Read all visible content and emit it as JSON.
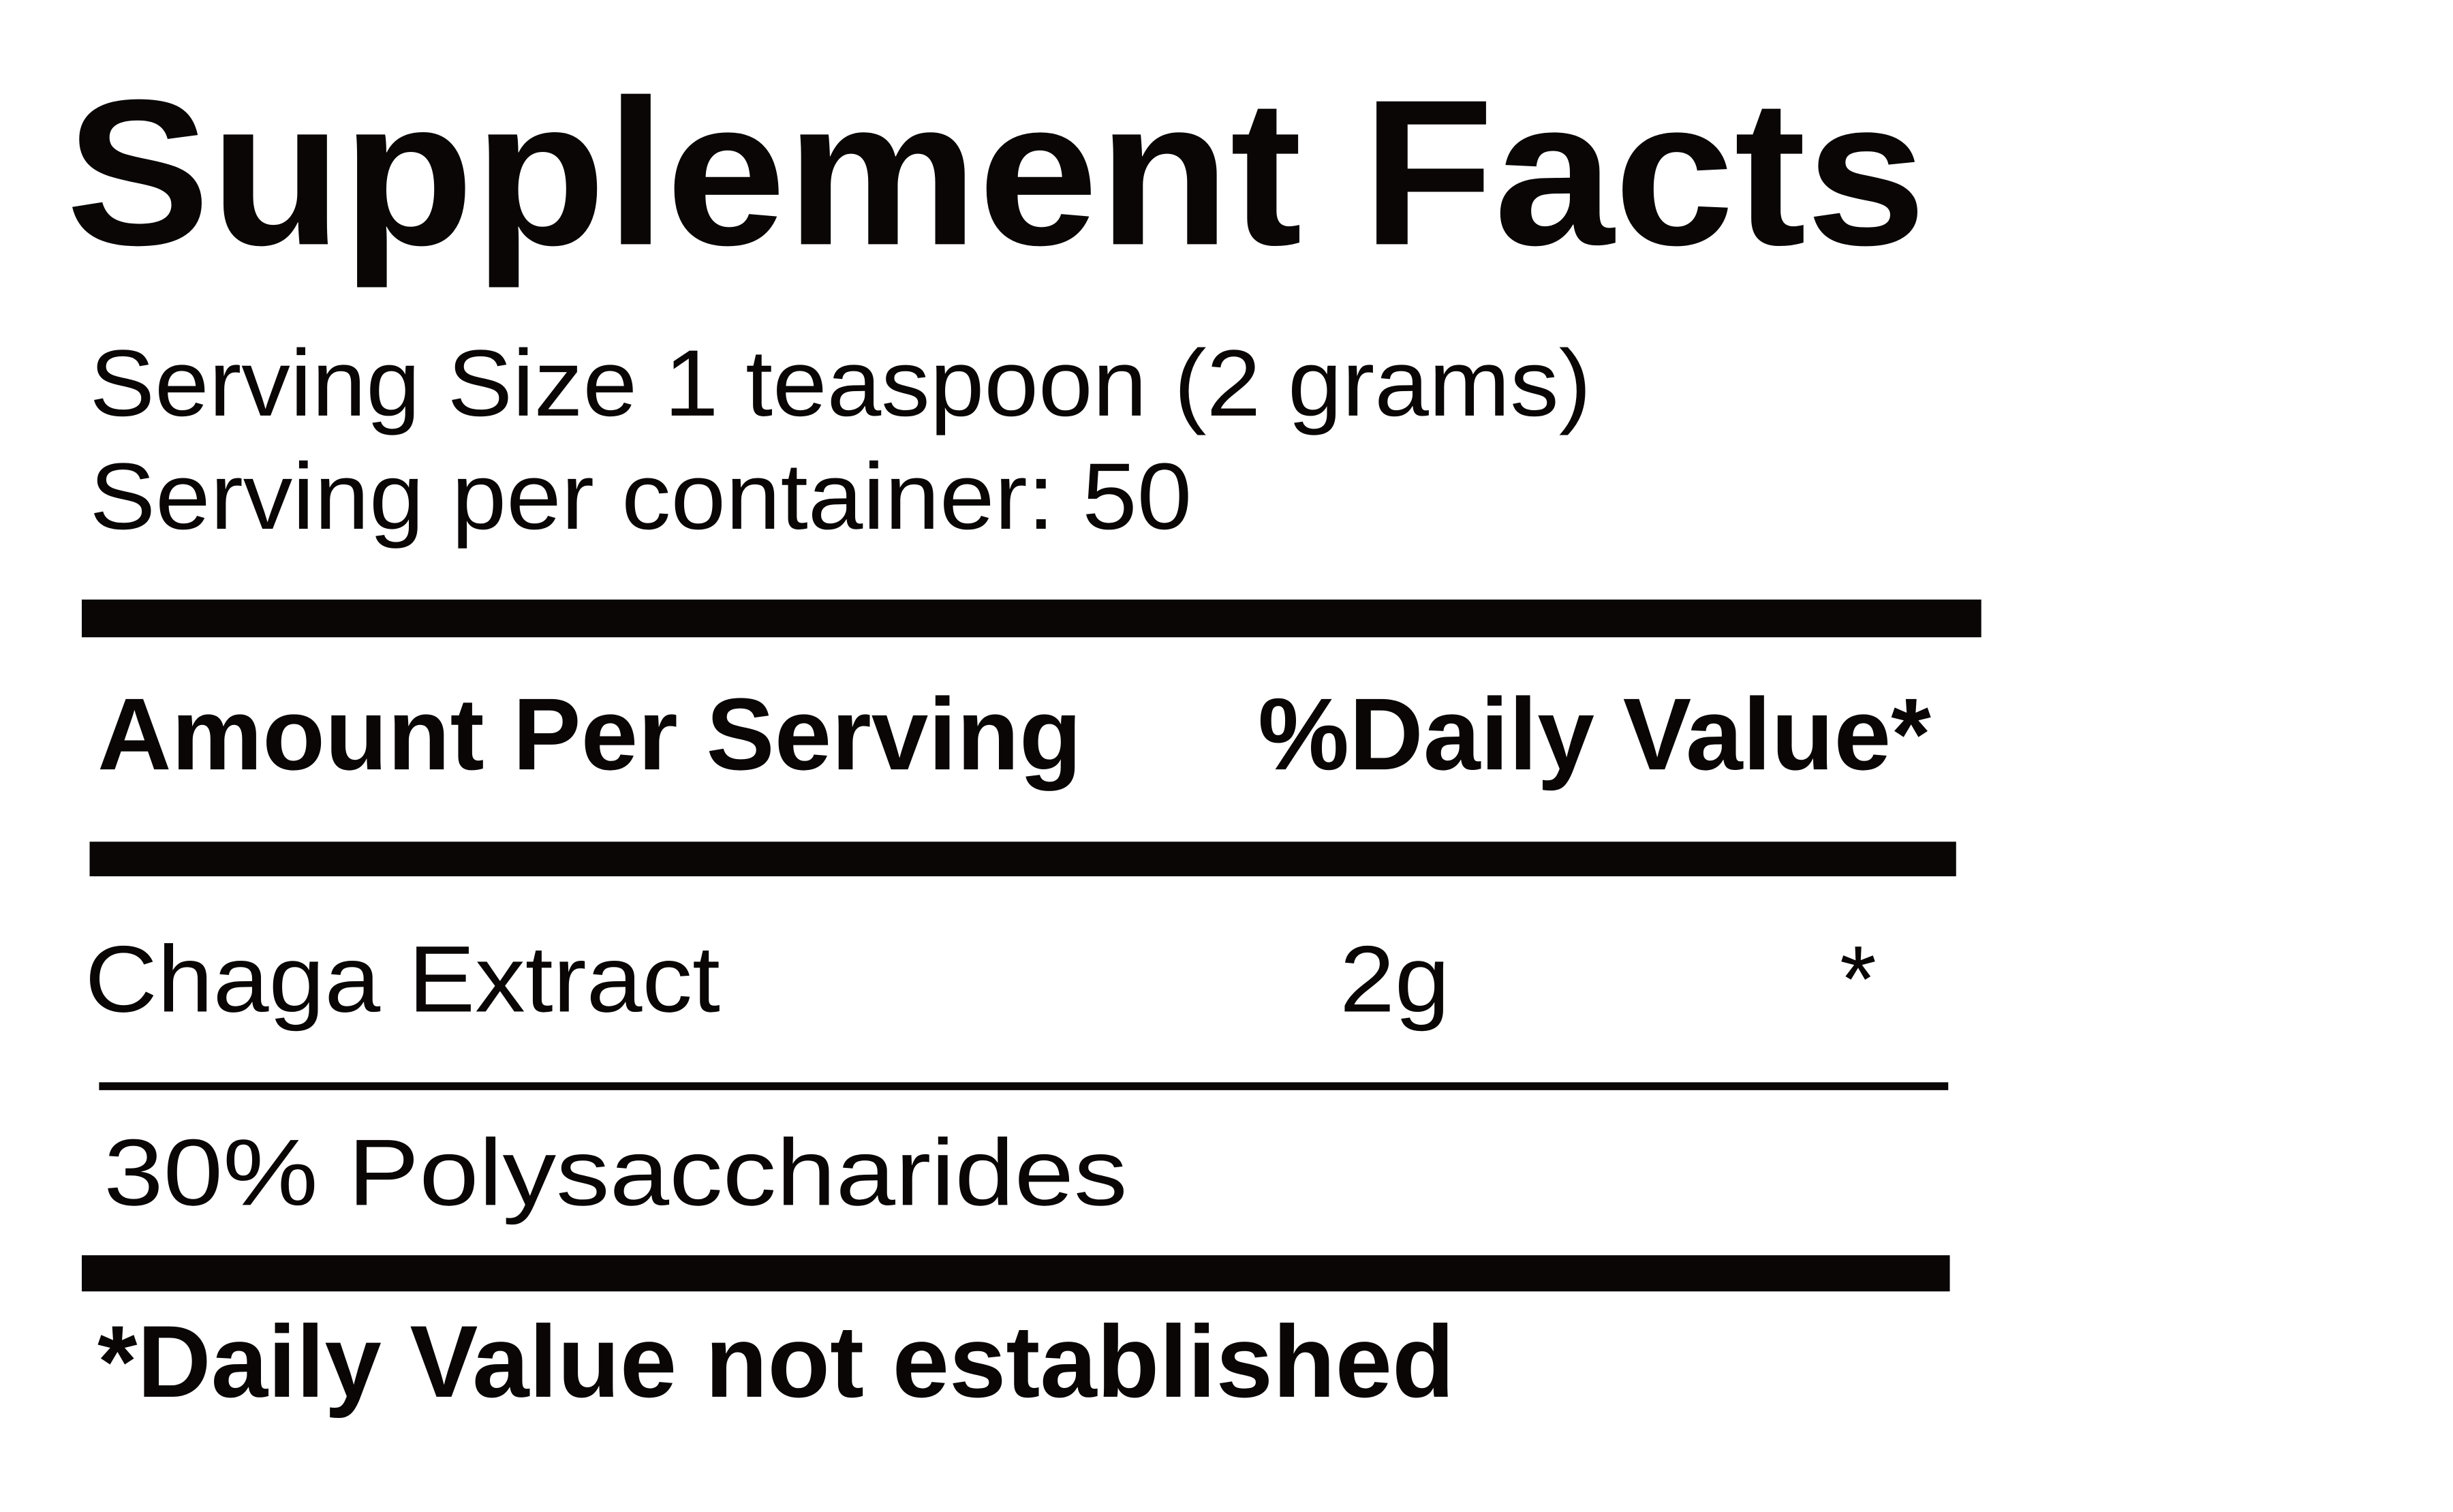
{
  "title": "Supplement Facts",
  "serving": {
    "size": "Serving Size 1 teaspoon (2 grams)",
    "per_container": "Serving per container: 50"
  },
  "table": {
    "header": {
      "amount": "Amount Per Serving",
      "daily_value": "%Daily Value*"
    },
    "rows": [
      {
        "name": "Chaga Extract",
        "amount": "2g",
        "daily_value": "*"
      },
      {
        "name": "30% Polysaccharides"
      }
    ]
  },
  "footnote": "*Daily Value not established",
  "colors": {
    "ink": "#0a0606",
    "background": "#ffffff"
  }
}
